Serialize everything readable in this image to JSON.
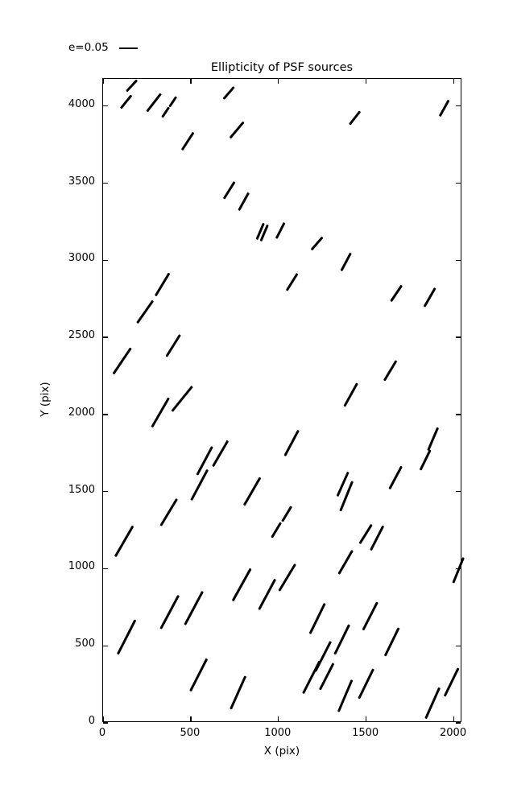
{
  "title": "Ellipticity of PSF sources",
  "legend": {
    "label": "e=0.05"
  },
  "axes": {
    "xlabel": "X (pix)",
    "ylabel": "Y (pix)",
    "xticks": [
      0,
      500,
      1000,
      1500,
      2000
    ],
    "yticks": [
      0,
      500,
      1000,
      1500,
      2000,
      2500,
      3000,
      3500,
      4000
    ]
  },
  "chart_data": {
    "type": "scatter",
    "subtype": "whisker-quiver",
    "title": "Ellipticity of PSF sources",
    "xlabel": "X (pix)",
    "ylabel": "Y (pix)",
    "xlim": [
      0,
      2048
    ],
    "ylim": [
      0,
      4176
    ],
    "grid": false,
    "legend_position": "upper-left-outside",
    "legend_scale_label": "e=0.05",
    "marker_color": "#000000",
    "whisker_format": [
      "x_pix",
      "y_pix",
      "angle_deg_ccw",
      "length_px"
    ],
    "whiskers": [
      [
        163,
        4134,
        47,
        19
      ],
      [
        130,
        4029,
        51,
        21
      ],
      [
        289,
        4024,
        52,
        28
      ],
      [
        356,
        3960,
        56,
        15
      ],
      [
        397,
        4030,
        56,
        15
      ],
      [
        718,
        4086,
        49,
        20
      ],
      [
        764,
        3847,
        50,
        26
      ],
      [
        482,
        3774,
        57,
        26
      ],
      [
        720,
        3452,
        58,
        25
      ],
      [
        799,
        3383,
        61,
        25
      ],
      [
        897,
        3186,
        67,
        22
      ],
      [
        920,
        3177,
        67,
        22
      ],
      [
        1009,
        3194,
        63,
        22
      ],
      [
        1434,
        3925,
        52,
        21
      ],
      [
        1944,
        3986,
        61,
        23
      ],
      [
        1221,
        3111,
        49,
        21
      ],
      [
        337,
        2841,
        59,
        33
      ],
      [
        237,
        2667,
        55,
        34
      ],
      [
        110,
        2345,
        56,
        39
      ],
      [
        398,
        2444,
        58,
        32
      ],
      [
        1384,
        2989,
        62,
        25
      ],
      [
        1075,
        2858,
        58,
        25
      ],
      [
        1671,
        2784,
        56,
        24
      ],
      [
        1863,
        2758,
        60,
        27
      ],
      [
        1636,
        2285,
        59,
        29
      ],
      [
        1414,
        2130,
        61,
        33
      ],
      [
        324,
        2015,
        60,
        42
      ],
      [
        448,
        2101,
        51,
        40
      ],
      [
        577,
        1702,
        62,
        40
      ],
      [
        669,
        1745,
        60,
        37
      ],
      [
        551,
        1545,
        62,
        43
      ],
      [
        375,
        1366,
        59,
        39
      ],
      [
        118,
        1180,
        60,
        44
      ],
      [
        850,
        1502,
        60,
        40
      ],
      [
        985,
        1250,
        59,
        22
      ],
      [
        1047,
        1354,
        59,
        22
      ],
      [
        1075,
        1815,
        62,
        36
      ],
      [
        1368,
        1550,
        66,
        33
      ],
      [
        1387,
        1472,
        68,
        40
      ],
      [
        1667,
        1588,
        62,
        32
      ],
      [
        1835,
        1705,
        64,
        28
      ],
      [
        1881,
        1841,
        67,
        31
      ],
      [
        1498,
        1223,
        58,
        28
      ],
      [
        1560,
        1200,
        63,
        34
      ],
      [
        133,
        557,
        63,
        48
      ],
      [
        378,
        719,
        62,
        47
      ],
      [
        516,
        745,
        62,
        47
      ],
      [
        791,
        896,
        61,
        46
      ],
      [
        934,
        832,
        62,
        43
      ],
      [
        543,
        313,
        63,
        45
      ],
      [
        768,
        197,
        66,
        45
      ],
      [
        1047,
        945,
        59,
        39
      ],
      [
        1382,
        1044,
        60,
        34
      ],
      [
        1223,
        675,
        64,
        42
      ],
      [
        1361,
        539,
        64,
        41
      ],
      [
        1521,
        693,
        63,
        39
      ],
      [
        1648,
        527,
        64,
        39
      ],
      [
        1189,
        298,
        63,
        45
      ],
      [
        1254,
        433,
        63,
        42
      ],
      [
        1272,
        303,
        63,
        37
      ],
      [
        1381,
        174,
        67,
        43
      ],
      [
        1498,
        252,
        64,
        41
      ],
      [
        1878,
        127,
        66,
        42
      ],
      [
        1985,
        266,
        64,
        39
      ],
      [
        2025,
        992,
        68,
        34
      ]
    ]
  }
}
